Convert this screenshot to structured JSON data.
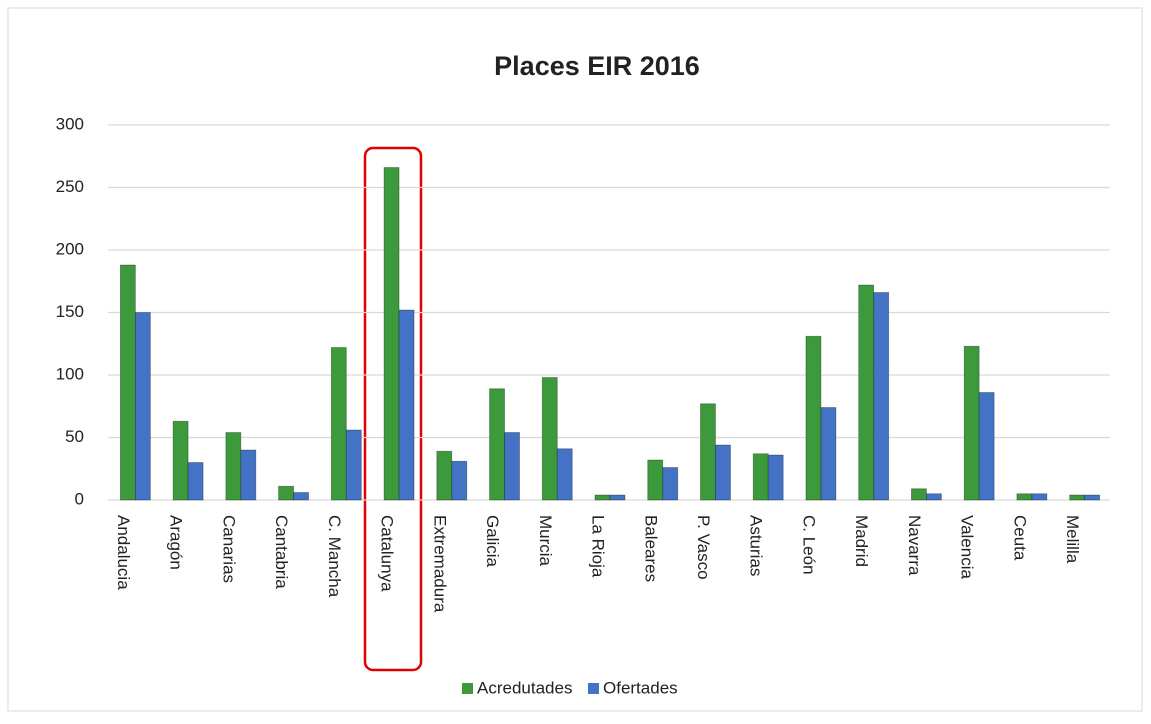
{
  "chart_data": {
    "type": "bar",
    "title": "Places EIR 2016",
    "categories": [
      "Andalucia",
      "Aragón",
      "Canarias",
      "Cantabria",
      "C. Mancha",
      "Catalunya",
      "Extremadura",
      "Galicia",
      "Murcia",
      "La Rioja",
      "Baleares",
      "P. Vasco",
      "Asturias",
      "C. León",
      "Madrid",
      "Navarra",
      "Valencia",
      "Ceuta",
      "Melilla"
    ],
    "series": [
      {
        "name": "Acredutades",
        "color": "#3c9a3c",
        "values": [
          188,
          63,
          54,
          11,
          122,
          266,
          39,
          89,
          98,
          4,
          32,
          77,
          37,
          131,
          172,
          9,
          123,
          5,
          4
        ]
      },
      {
        "name": "Ofertades",
        "color": "#4472c4",
        "values": [
          150,
          30,
          40,
          6,
          56,
          152,
          31,
          54,
          41,
          4,
          26,
          44,
          36,
          74,
          166,
          5,
          86,
          5,
          4
        ]
      }
    ],
    "ylim": [
      0,
      300
    ],
    "yticks": [
      0,
      50,
      100,
      150,
      200,
      250,
      300
    ],
    "grid": true,
    "legend": "bottom"
  }
}
